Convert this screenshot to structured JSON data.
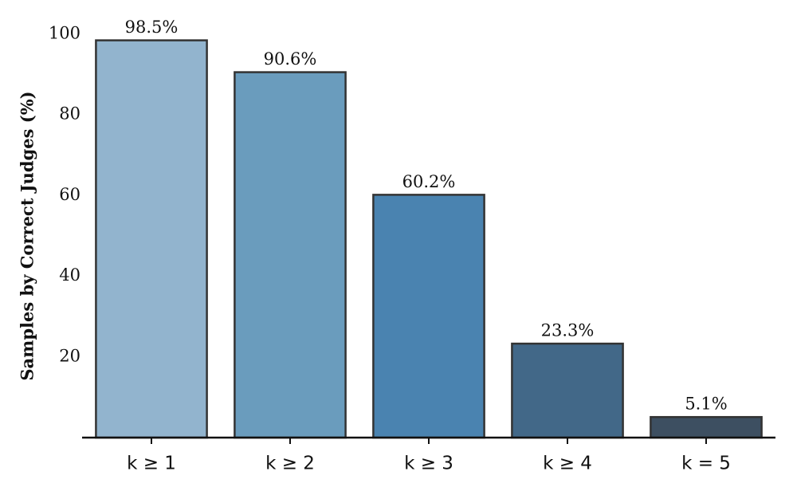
{
  "chart_data": {
    "type": "bar",
    "y_label": "Samples by Correct Judges (%)",
    "categories": [
      "k ≥ 1",
      "k ≥ 2",
      "k ≥ 3",
      "k ≥ 4",
      "k = 5"
    ],
    "values": [
      98.5,
      90.6,
      60.2,
      23.3,
      5.1
    ],
    "value_labels": [
      "98.5%",
      "90.6%",
      "60.2%",
      "23.3%",
      "5.1%"
    ],
    "colors": [
      "#92b4ce",
      "#6a9cbd",
      "#4a83b0",
      "#426888",
      "#3d4f61"
    ],
    "ylim": [
      0,
      100
    ],
    "yticks": [
      20,
      40,
      60,
      80,
      100
    ],
    "grid": false
  }
}
